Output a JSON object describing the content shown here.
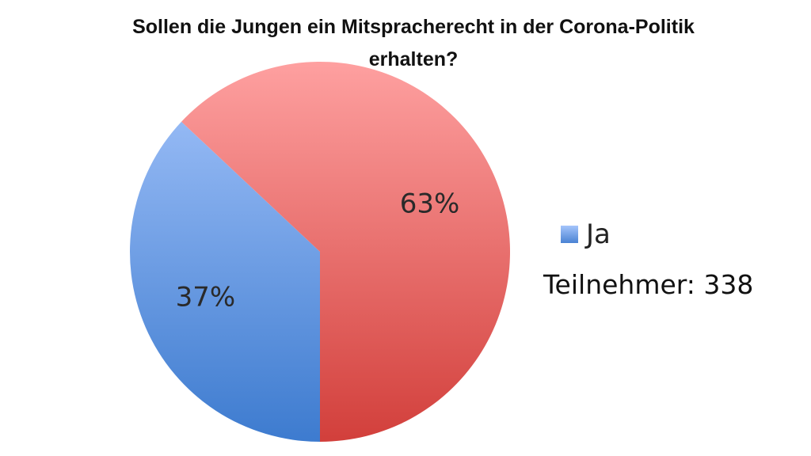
{
  "chart_data": {
    "type": "pie",
    "title": "Sollen die Jungen ein Mitspracherecht in der Corona-Politik erhalten?",
    "slices": [
      {
        "label": "Ja",
        "value": 37,
        "value_label": "37%",
        "color_top": "#a4c4fb",
        "color_bottom": "#3d7bcf"
      },
      {
        "label": "",
        "value": 63,
        "value_label": "63%",
        "color_top": "#fea0a0",
        "color_bottom": "#d23f3b"
      }
    ],
    "legend": {
      "placement": "right",
      "entries": [
        "Ja"
      ]
    },
    "note": "Teilnehmer: 338"
  }
}
